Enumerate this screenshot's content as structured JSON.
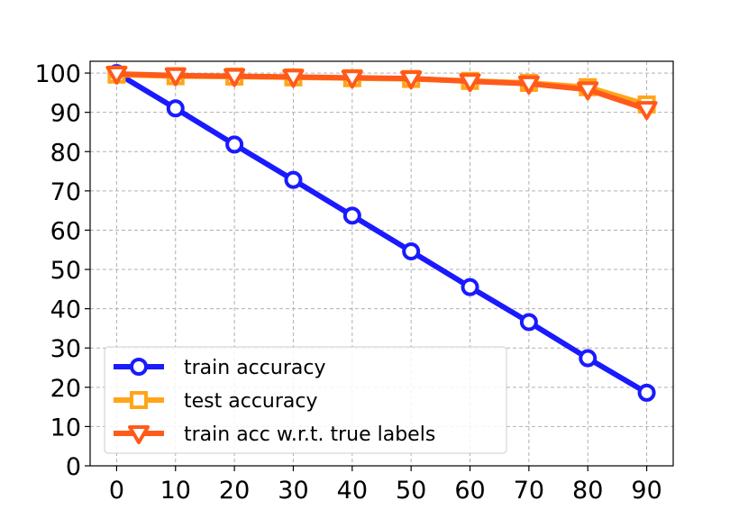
{
  "chart_data": {
    "type": "line",
    "title": "",
    "xlabel": "",
    "ylabel": "",
    "x": [
      0,
      10,
      20,
      30,
      40,
      50,
      60,
      70,
      80,
      90
    ],
    "xlim": [
      -4.5,
      94.5
    ],
    "ylim": [
      0,
      103
    ],
    "xticks": [
      0,
      10,
      20,
      30,
      40,
      50,
      60,
      70,
      80,
      90
    ],
    "yticks": [
      0,
      10,
      20,
      30,
      40,
      50,
      60,
      70,
      80,
      90,
      100
    ],
    "grid": true,
    "legend_position": "lower-left",
    "series": [
      {
        "name": "train accuracy",
        "color": "#1a1aff",
        "marker": "circle",
        "values": [
          100,
          91,
          81.8,
          72.8,
          63.7,
          54.6,
          45.5,
          36.6,
          27.4,
          18.6
        ]
      },
      {
        "name": "test accuracy",
        "color": "#ffa51a",
        "marker": "square",
        "values": [
          99.6,
          99.2,
          99.1,
          98.9,
          98.7,
          98.5,
          98.0,
          97.5,
          96.4,
          92.0
        ]
      },
      {
        "name": "train acc w.r.t. true labels",
        "color": "#ff5a1a",
        "marker": "triangle-down",
        "values": [
          99.8,
          99.4,
          99.2,
          99.0,
          98.8,
          98.6,
          97.9,
          97.3,
          95.8,
          90.8
        ]
      }
    ]
  }
}
